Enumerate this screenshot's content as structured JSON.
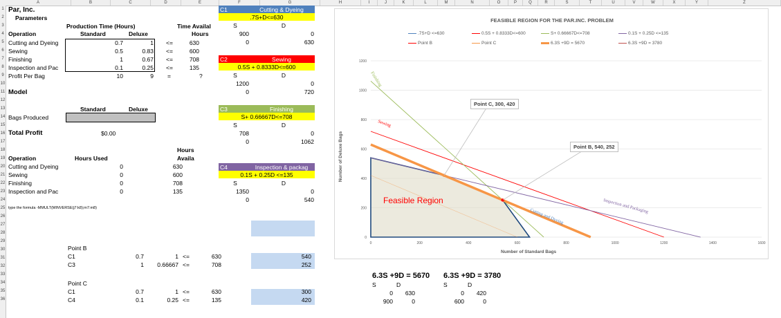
{
  "sheet": {
    "col_headers": [
      "A",
      "B",
      "C",
      "D",
      "E",
      "F",
      "G",
      "H",
      "I",
      "J",
      "K",
      "L",
      "M",
      "N",
      "O",
      "P",
      "Q",
      "R",
      "S",
      "T",
      "U",
      "V",
      "W",
      "X",
      "Y",
      "Z"
    ],
    "row_numbers": [
      "1",
      "2",
      "3",
      "4",
      "5",
      "6",
      "7",
      "8",
      "9",
      "10",
      "11",
      "12",
      "13",
      "14",
      "15",
      "16",
      "17",
      "18",
      "19",
      "20",
      "21",
      "22",
      "23",
      "24",
      "25",
      "26",
      "27",
      "28",
      "29",
      "30",
      "31",
      "32",
      "33",
      "34",
      "35",
      "36"
    ],
    "title": "Par, Inc.",
    "parameters": "Parameters",
    "prod_time_header": "Production Time (Hours)",
    "time_avail_header": "Time Availal",
    "operation_header": "Operation",
    "standard_header": "Standard",
    "deluxe_header": "Deluxe",
    "hours_header": "Hours",
    "operations": [
      {
        "name": "Cutting and Dyeing",
        "std": "0.7",
        "dlx": "1",
        "op": "<=",
        "hours": "630"
      },
      {
        "name": "Sewing",
        "std": "0.5",
        "dlx": "0.83",
        "op": "<=",
        "hours": "600"
      },
      {
        "name": "Finishing",
        "std": "1",
        "dlx": "0.67",
        "op": "<=",
        "hours": "708"
      },
      {
        "name": "Inspection and Pac",
        "std": "0.1",
        "dlx": "0.25",
        "op": "<=",
        "hours": "135"
      }
    ],
    "profit_label": "Profit Per Bag",
    "profit_std": "10",
    "profit_dlx": "9",
    "profit_eq": "=",
    "profit_q": "?",
    "model_label": "Model",
    "bags_label": "Bags Produced",
    "total_profit_label": "Total Profit",
    "total_profit_value": "$0.00",
    "hours_used_header": "Hours Used",
    "hours_avail_header1": "Hours",
    "hours_avail_header2": "Availa",
    "used_rows": [
      {
        "name": "Cutting and Dyeing",
        "used": "0",
        "avail": "630"
      },
      {
        "name": "Sewing",
        "used": "0",
        "avail": "600"
      },
      {
        "name": "Finishing",
        "used": "0",
        "avail": "708"
      },
      {
        "name": "Inspection and Pac",
        "used": "0",
        "avail": "135"
      }
    ],
    "formula_note": "type the formula -MMULT(MINVERSE(j7:k8);m7:m8)",
    "point_b": {
      "label": "Point B",
      "r1": [
        "C1",
        "0.7",
        "1",
        "<=",
        "630",
        "540"
      ],
      "r2": [
        "C3",
        "1",
        "0.66667",
        "<=",
        "708",
        "252"
      ]
    },
    "point_c": {
      "label": "Point C",
      "r1": [
        "C1",
        "0.7",
        "1",
        "<=",
        "630",
        "300"
      ],
      "r2": [
        "C4",
        "0.1",
        "0.25",
        "<=",
        "135",
        "420"
      ]
    },
    "constraints": [
      {
        "id": "C1",
        "title": "Cutting & Dyeing",
        "eq": ".7S+D<=630",
        "s": "S",
        "d": "D",
        "s1": "900",
        "d1": "0",
        "s2": "0",
        "d2": "630",
        "color": "#4f81bd"
      },
      {
        "id": "C2",
        "title": "Sewing",
        "eq": "0.5S + 0.8333D<=600",
        "s": "S",
        "d": "D",
        "s1": "1200",
        "d1": "0",
        "s2": "0",
        "d2": "720",
        "color": "#ff0000"
      },
      {
        "id": "C3",
        "title": "Finishing",
        "eq": "S+ 0.66667D<=708",
        "s": "S",
        "d": "D",
        "s1": "708",
        "d1": "0",
        "s2": "0",
        "d2": "1062",
        "color": "#9bbb59"
      },
      {
        "id": "C4",
        "title": "Inspection & packag",
        "eq": "0.1S + 0.25D <=135",
        "s": "S",
        "d": "D",
        "s1": "1350",
        "d1": "0",
        "s2": "0",
        "d2": "540",
        "color": "#8064a2"
      }
    ],
    "iso1": {
      "title": "6.3S +9D  = 5670",
      "s": "S",
      "d": "D",
      "s1": "0",
      "d1": "630",
      "s2": "900",
      "d2": "0"
    },
    "iso2": {
      "title": "6.3S +9D  = 3780",
      "s": "S",
      "d": "D",
      "s1": "0",
      "d1": "420",
      "s2": "600",
      "d2": "0"
    }
  },
  "chart": {
    "colors": {
      "cutting": "#4f81bd",
      "sewing": "#ff0000",
      "finishing": "#9bbb59",
      "inspection": "#8064a2",
      "profit1": "#f79646",
      "profit2": "#c0504d",
      "region": "#ddd9c3",
      "region_edge": "#1f497d"
    },
    "region_label": "Feasible Region",
    "annotations": {
      "finishing": "Finishing",
      "sewing": "Sewing",
      "cutting": "Cutting and Dyeing",
      "inspection": "Inspection and Packaging"
    },
    "callout_b": "Point B, 540, 252",
    "callout_c": "Point C, 300, 420"
  },
  "chart_data": {
    "type": "line",
    "title": "FEASIBLE REGION FOR THE PAR.INC. PROBLEM",
    "xlabel": "Number of Standard Bags",
    "ylabel": "Number of Deluxe Bags",
    "xlim": [
      0,
      1600
    ],
    "ylim": [
      0,
      1200
    ],
    "xticks": [
      "0",
      "200",
      "400",
      "600",
      "800",
      "1000",
      "1200",
      "1400",
      "1600"
    ],
    "yticks": [
      "0",
      "200",
      "400",
      "600",
      "800",
      "1000",
      "1200"
    ],
    "series": [
      {
        "name": ".7S+D <=630",
        "x": [
          0,
          900
        ],
        "y": [
          630,
          0
        ]
      },
      {
        "name": "0.5S + 0.8333D<=600",
        "x": [
          0,
          1200
        ],
        "y": [
          720,
          0
        ]
      },
      {
        "name": "S+ 0.66667D<=708",
        "x": [
          708,
          0
        ],
        "y": [
          0,
          1062
        ]
      },
      {
        "name": "0.1S + 0.25D <=135",
        "x": [
          0,
          1350
        ],
        "y": [
          540,
          0
        ]
      },
      {
        "name": "Point B",
        "x": [
          540
        ],
        "y": [
          252
        ]
      },
      {
        "name": "Point C",
        "x": [
          300
        ],
        "y": [
          420
        ]
      },
      {
        "name": "6.3S +9D  = 5670",
        "x": [
          0,
          900
        ],
        "y": [
          630,
          0
        ]
      },
      {
        "name": "6.3S +9D  = 3780",
        "x": [
          0,
          600
        ],
        "y": [
          420,
          0
        ]
      }
    ]
  }
}
